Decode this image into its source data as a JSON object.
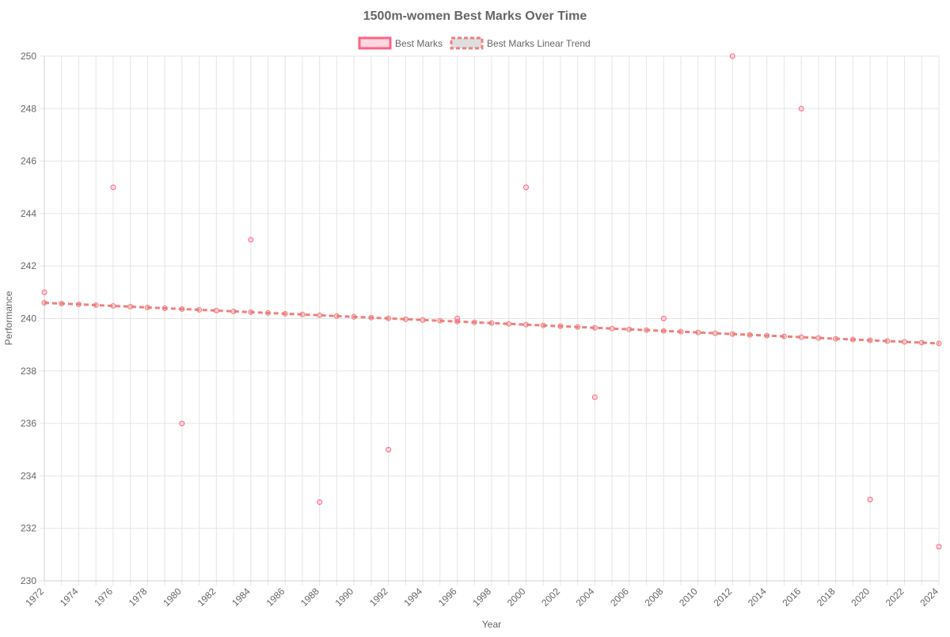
{
  "chart_data": {
    "type": "scatter",
    "title": "1500m-women Best Marks Over Time",
    "xlabel": "Year",
    "ylabel": "Performance",
    "xlim": [
      1972,
      2024
    ],
    "ylim": [
      230,
      250
    ],
    "x_ticks": [
      "1972",
      "1974",
      "1976",
      "1978",
      "1980",
      "1982",
      "1984",
      "1986",
      "1988",
      "1990",
      "1992",
      "1994",
      "1996",
      "1998",
      "2000",
      "2002",
      "2004",
      "2006",
      "2008",
      "2010",
      "2012",
      "2014",
      "2016",
      "2018",
      "2020",
      "2022",
      "2024"
    ],
    "y_ticks": [
      "230",
      "232",
      "234",
      "236",
      "238",
      "240",
      "242",
      "244",
      "246",
      "248",
      "250"
    ],
    "grid": true,
    "legend_position": "top",
    "series": [
      {
        "name": "Best Marks",
        "color": "#ff6384",
        "points": [
          {
            "x": 1972,
            "y": 241.0
          },
          {
            "x": 1976,
            "y": 245.0
          },
          {
            "x": 1980,
            "y": 236.0
          },
          {
            "x": 1984,
            "y": 243.0
          },
          {
            "x": 1988,
            "y": 233.0
          },
          {
            "x": 1992,
            "y": 235.0
          },
          {
            "x": 1996,
            "y": 240.0
          },
          {
            "x": 2000,
            "y": 245.0
          },
          {
            "x": 2004,
            "y": 237.0
          },
          {
            "x": 2008,
            "y": 240.0
          },
          {
            "x": 2012,
            "y": 250.0
          },
          {
            "x": 2016,
            "y": 248.0
          },
          {
            "x": 2020,
            "y": 233.1
          },
          {
            "x": 2024,
            "y": 231.3
          }
        ]
      },
      {
        "name": "Best Marks Linear Trend",
        "color": "#f07f7f",
        "style": "dashed",
        "x_start": 1972,
        "x_end": 2024,
        "y_start": 240.6,
        "y_end": 239.05
      }
    ]
  }
}
